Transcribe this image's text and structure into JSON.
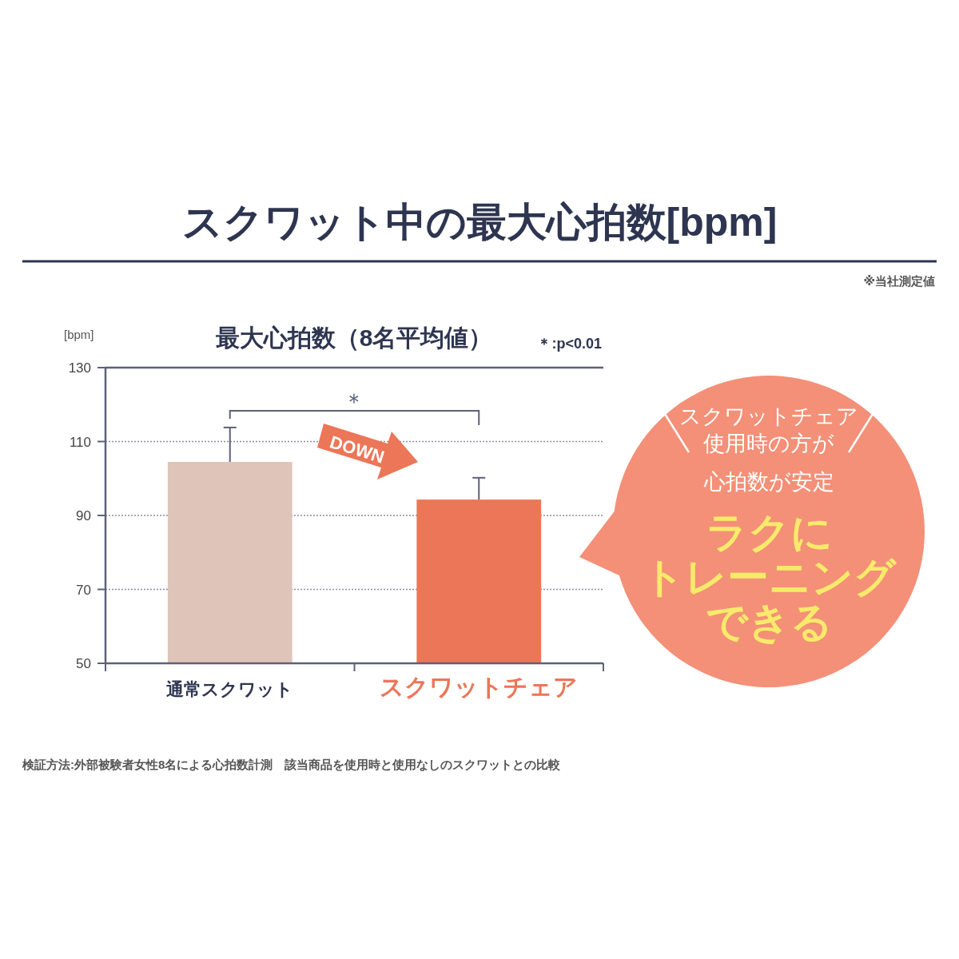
{
  "chart_data": {
    "type": "bar",
    "title": "スクワット中の最大心拍数[bpm]",
    "subtitle": "最大心拍数（8名平均値）",
    "ylabel": "[bpm]",
    "categories": [
      "通常スクワット",
      "スクワットチェア"
    ],
    "values": [
      104.5,
      94.3
    ],
    "colors": [
      "#dfc4ba",
      "#ec7658"
    ],
    "errors": [
      [
        104.5,
        113.8
      ],
      [
        94.3,
        100.2
      ]
    ],
    "ylim": [
      50,
      130
    ],
    "yticks": [
      50,
      70,
      90,
      110,
      130
    ],
    "grid": "y",
    "annotations": [
      "※当社測定値",
      "＊:p<0.01",
      "＊",
      "DOWN",
      "スクワットチェア",
      "使用時の方が",
      "心拍数が安定",
      "ラクに",
      "トレーニング",
      "できる",
      "検証方法:外部被験者女性8名による心拍数計測　該当商品を使用時と使用なしのスクワットとの比較"
    ]
  }
}
